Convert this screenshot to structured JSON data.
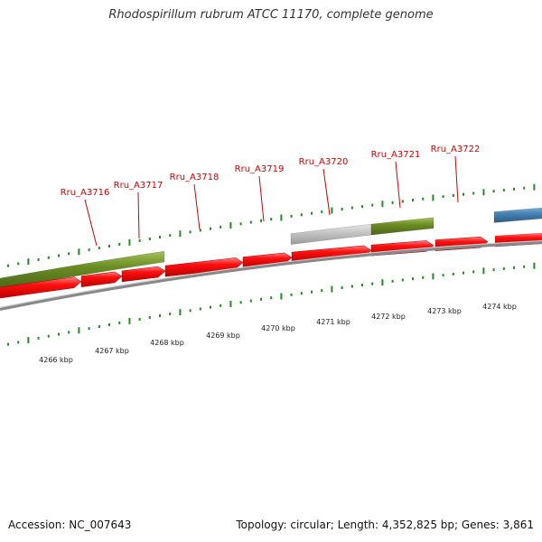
{
  "title": "Rhodospirillum rubrum ATCC 11170, complete genome",
  "footer": {
    "accession": "Accession: NC_007643",
    "summary": "Topology: circular; Length: 4,352,825 bp; Genes: 3,861"
  },
  "colors": {
    "cds": "#ff0000",
    "gene_bar": "#6b8e23",
    "grey_bar": "#c0c0c0",
    "blue_bar": "#4682b4",
    "backbone": "#808080",
    "tick": "#228b22",
    "label": "#cc0000"
  },
  "gene_labels": [
    "Rru_A3716",
    "Rru_A3717",
    "Rru_A3718",
    "Rru_A3719",
    "Rru_A3720",
    "Rru_A3721",
    "Rru_A3722"
  ],
  "scale_labels": [
    "4266 kbp",
    "4267 kbp",
    "4268 kbp",
    "4269 kbp",
    "4270 kbp",
    "4271 kbp",
    "4272 kbp",
    "4273 kbp",
    "4274 kbp"
  ]
}
